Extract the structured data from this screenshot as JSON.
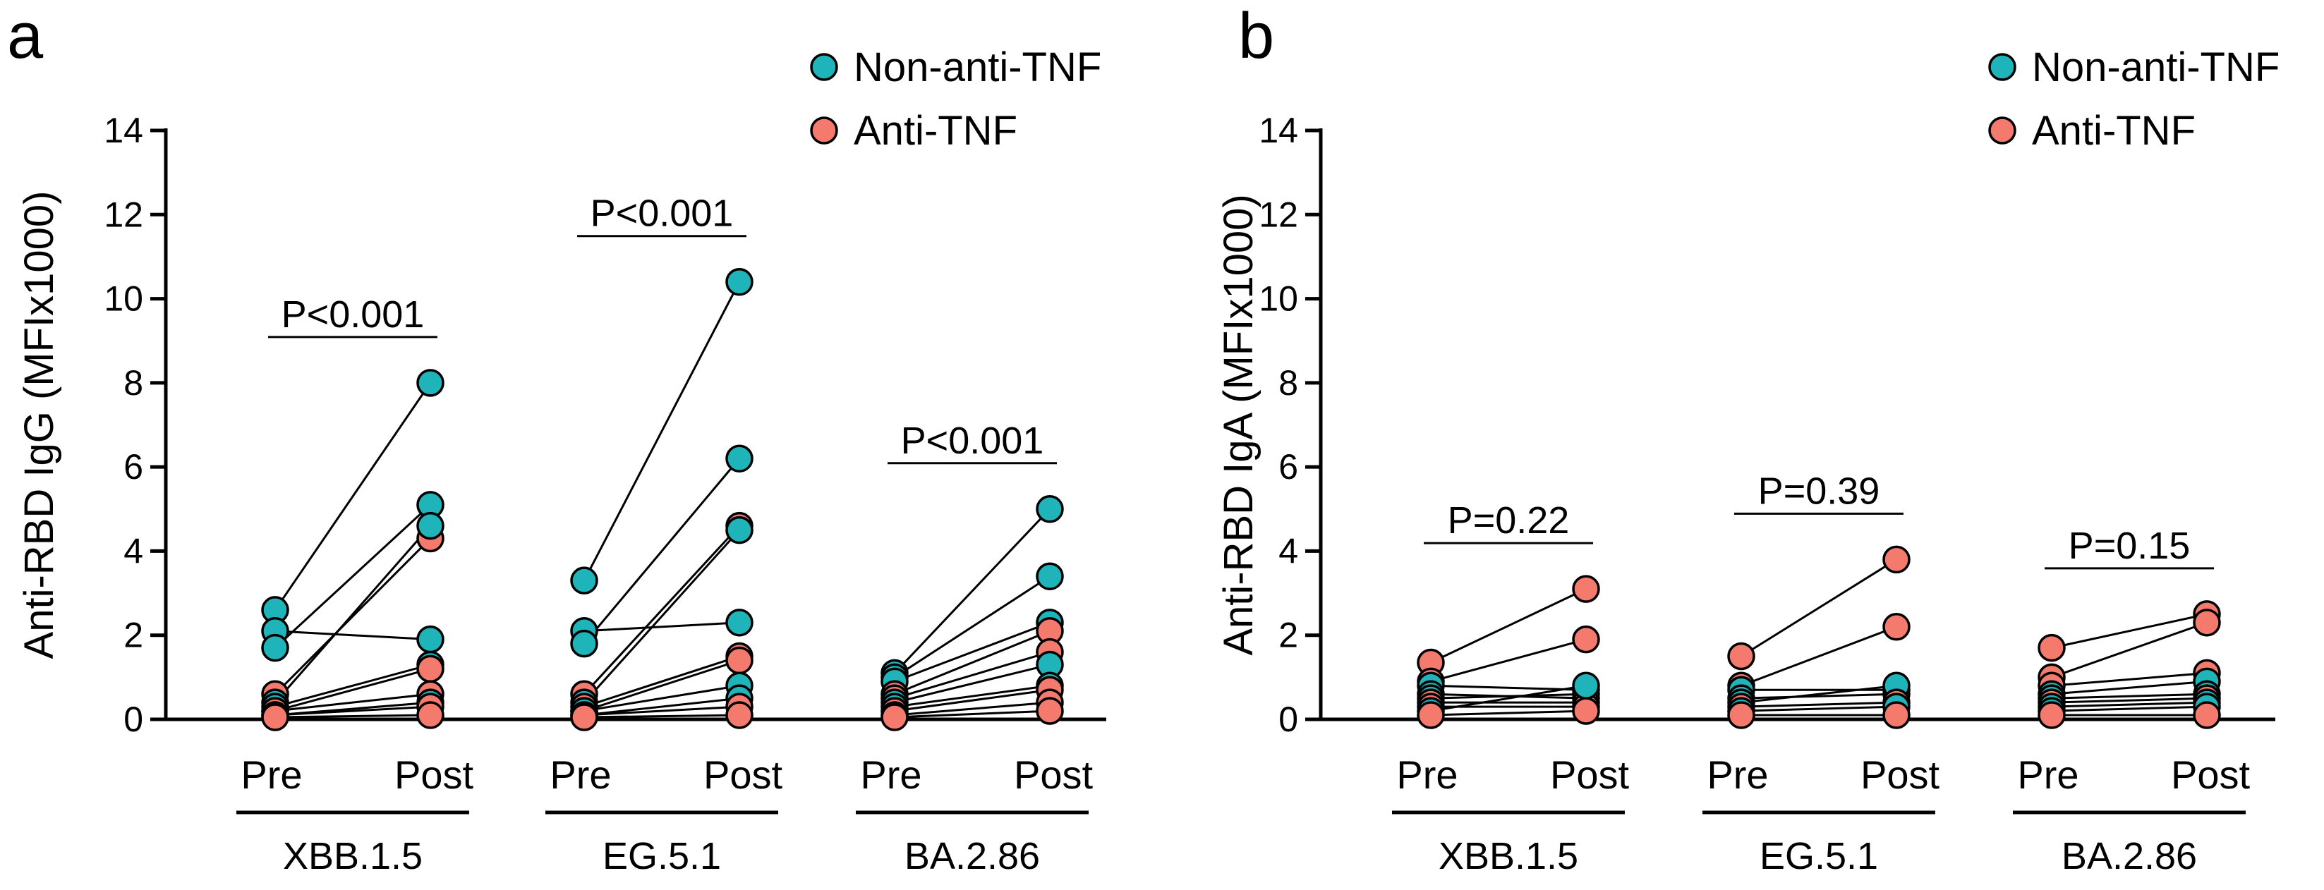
{
  "colors": {
    "non_anti_tnf": "#1fb4b9",
    "anti_tnf": "#f47a6e"
  },
  "chart_data": [
    {
      "type": "scatter",
      "panel": "a",
      "ylabel": "Anti-RBD IgG (MFIx1000)",
      "ylim": [
        0,
        14
      ],
      "yticks": [
        0,
        2,
        4,
        6,
        8,
        10,
        12,
        14
      ],
      "legend": {
        "position": "top-right",
        "entries": [
          "Non-anti-TNF",
          "Anti-TNF"
        ]
      },
      "groups": [
        {
          "name": "XBB.1.5",
          "conditions": [
            "Pre",
            "Post"
          ],
          "pvalue": "P<0.001",
          "pairs": [
            {
              "pre": 2.6,
              "post": 8.0,
              "series": "non"
            },
            {
              "pre": 2.1,
              "post": 1.9,
              "series": "non"
            },
            {
              "pre": 1.7,
              "post": 5.1,
              "series": "non"
            },
            {
              "pre": 0.6,
              "post": 4.3,
              "series": "anti"
            },
            {
              "pre": 0.4,
              "post": 4.6,
              "series": "non"
            },
            {
              "pre": 0.3,
              "post": 1.3,
              "series": "non"
            },
            {
              "pre": 0.2,
              "post": 1.2,
              "series": "anti"
            },
            {
              "pre": 0.2,
              "post": 0.6,
              "series": "anti"
            },
            {
              "pre": 0.1,
              "post": 0.4,
              "series": "non"
            },
            {
              "pre": 0.1,
              "post": 0.3,
              "series": "anti"
            },
            {
              "pre": 0.05,
              "post": 0.1,
              "series": "anti"
            }
          ]
        },
        {
          "name": "EG.5.1",
          "conditions": [
            "Pre",
            "Post"
          ],
          "pvalue": "P<0.001",
          "pairs": [
            {
              "pre": 3.3,
              "post": 10.4,
              "series": "non"
            },
            {
              "pre": 2.1,
              "post": 2.3,
              "series": "non"
            },
            {
              "pre": 1.8,
              "post": 6.2,
              "series": "non"
            },
            {
              "pre": 0.6,
              "post": 4.6,
              "series": "anti"
            },
            {
              "pre": 0.4,
              "post": 4.5,
              "series": "non"
            },
            {
              "pre": 0.3,
              "post": 1.5,
              "series": "anti"
            },
            {
              "pre": 0.2,
              "post": 1.4,
              "series": "anti"
            },
            {
              "pre": 0.2,
              "post": 0.8,
              "series": "non"
            },
            {
              "pre": 0.1,
              "post": 0.5,
              "series": "non"
            },
            {
              "pre": 0.1,
              "post": 0.3,
              "series": "anti"
            },
            {
              "pre": 0.05,
              "post": 0.1,
              "series": "anti"
            }
          ]
        },
        {
          "name": "BA.2.86",
          "conditions": [
            "Pre",
            "Post"
          ],
          "pvalue": "P<0.001",
          "pairs": [
            {
              "pre": 1.1,
              "post": 5.0,
              "series": "non"
            },
            {
              "pre": 1.0,
              "post": 3.4,
              "series": "non"
            },
            {
              "pre": 0.9,
              "post": 2.3,
              "series": "non"
            },
            {
              "pre": 0.6,
              "post": 2.1,
              "series": "anti"
            },
            {
              "pre": 0.5,
              "post": 1.6,
              "series": "anti"
            },
            {
              "pre": 0.4,
              "post": 1.3,
              "series": "non"
            },
            {
              "pre": 0.3,
              "post": 0.8,
              "series": "non"
            },
            {
              "pre": 0.2,
              "post": 0.7,
              "series": "anti"
            },
            {
              "pre": 0.1,
              "post": 0.4,
              "series": "anti"
            },
            {
              "pre": 0.05,
              "post": 0.2,
              "series": "anti"
            }
          ]
        }
      ]
    },
    {
      "type": "scatter",
      "panel": "b",
      "ylabel": "Anti-RBD IgA (MFIx1000)",
      "ylim": [
        0,
        14
      ],
      "yticks": [
        0,
        2,
        4,
        6,
        8,
        10,
        12,
        14
      ],
      "legend": {
        "position": "top-right",
        "entries": [
          "Non-anti-TNF",
          "Anti-TNF"
        ]
      },
      "groups": [
        {
          "name": "XBB.1.5",
          "conditions": [
            "Pre",
            "Post"
          ],
          "pvalue": "P=0.22",
          "pairs": [
            {
              "pre": 1.35,
              "post": 3.1,
              "series": "anti"
            },
            {
              "pre": 0.9,
              "post": 1.9,
              "series": "anti"
            },
            {
              "pre": 0.8,
              "post": 0.7,
              "series": "non"
            },
            {
              "pre": 0.6,
              "post": 0.5,
              "series": "non"
            },
            {
              "pre": 0.5,
              "post": 0.6,
              "series": "non"
            },
            {
              "pre": 0.4,
              "post": 0.4,
              "series": "anti"
            },
            {
              "pre": 0.3,
              "post": 0.3,
              "series": "anti"
            },
            {
              "pre": 0.2,
              "post": 0.8,
              "series": "non"
            },
            {
              "pre": 0.1,
              "post": 0.2,
              "series": "anti"
            }
          ]
        },
        {
          "name": "EG.5.1",
          "conditions": [
            "Pre",
            "Post"
          ],
          "pvalue": "P=0.39",
          "pairs": [
            {
              "pre": 1.5,
              "post": 3.8,
              "series": "anti"
            },
            {
              "pre": 0.8,
              "post": 2.2,
              "series": "anti"
            },
            {
              "pre": 0.7,
              "post": 0.7,
              "series": "non"
            },
            {
              "pre": 0.5,
              "post": 0.6,
              "series": "non"
            },
            {
              "pre": 0.4,
              "post": 0.8,
              "series": "non"
            },
            {
              "pre": 0.3,
              "post": 0.4,
              "series": "anti"
            },
            {
              "pre": 0.2,
              "post": 0.3,
              "series": "non"
            },
            {
              "pre": 0.1,
              "post": 0.1,
              "series": "anti"
            }
          ]
        },
        {
          "name": "BA.2.86",
          "conditions": [
            "Pre",
            "Post"
          ],
          "pvalue": "P=0.15",
          "pairs": [
            {
              "pre": 1.7,
              "post": 2.5,
              "series": "anti"
            },
            {
              "pre": 1.0,
              "post": 2.3,
              "series": "anti"
            },
            {
              "pre": 0.8,
              "post": 1.1,
              "series": "anti"
            },
            {
              "pre": 0.6,
              "post": 0.9,
              "series": "non"
            },
            {
              "pre": 0.5,
              "post": 0.6,
              "series": "non"
            },
            {
              "pre": 0.4,
              "post": 0.5,
              "series": "anti"
            },
            {
              "pre": 0.3,
              "post": 0.4,
              "series": "non"
            },
            {
              "pre": 0.2,
              "post": 0.3,
              "series": "non"
            },
            {
              "pre": 0.1,
              "post": 0.1,
              "series": "anti"
            }
          ]
        }
      ]
    }
  ]
}
